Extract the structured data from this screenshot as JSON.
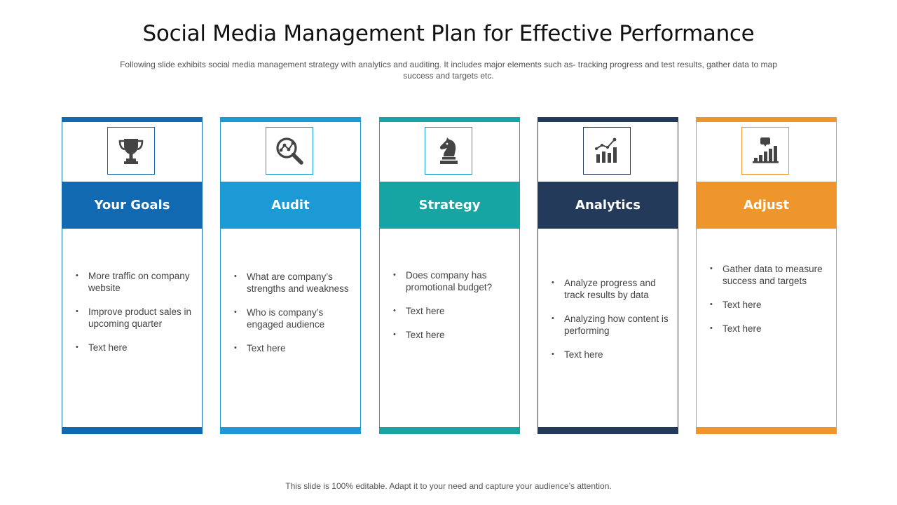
{
  "title": "Social Media Management Plan for Effective Performance",
  "subtitle": "Following slide exhibits social media management strategy  with analytics and auditing. It includes major elements such as- tracking progress  and test results, gather data to map success and targets etc.",
  "footer": "This slide is 100% editable. Adapt it to your need and capture your audience’s attention.",
  "cards": [
    {
      "label": "Your Goals",
      "color": "#1069B1",
      "icon": "trophy-icon",
      "bullets": [
        "More traffic on company website",
        "Improve product sales in upcoming quarter",
        "Text here"
      ]
    },
    {
      "label": "Audit",
      "color": "#1B9AD6",
      "icon": "magnifier-analytics-icon",
      "bullets": [
        "What are company’s strengths and weakness",
        "Who is company’s engaged audience",
        "Text here"
      ]
    },
    {
      "label": "Strategy",
      "color": "#17A5A3",
      "icon": "chess-knight-icon",
      "bullets": [
        "Does company has promotional budget?",
        "Text here",
        "Text here"
      ]
    },
    {
      "label": "Analytics",
      "color": "#233A5B",
      "icon": "bar-chart-growth-icon",
      "bullets": [
        "Analyze progress and track results by data",
        "Analyzing how content is performing",
        "Text here"
      ]
    },
    {
      "label": "Adjust",
      "color": "#EE962B",
      "icon": "chart-comment-icon",
      "bullets": [
        "Gather data to measure success and targets",
        "Text here",
        "Text here"
      ]
    }
  ]
}
